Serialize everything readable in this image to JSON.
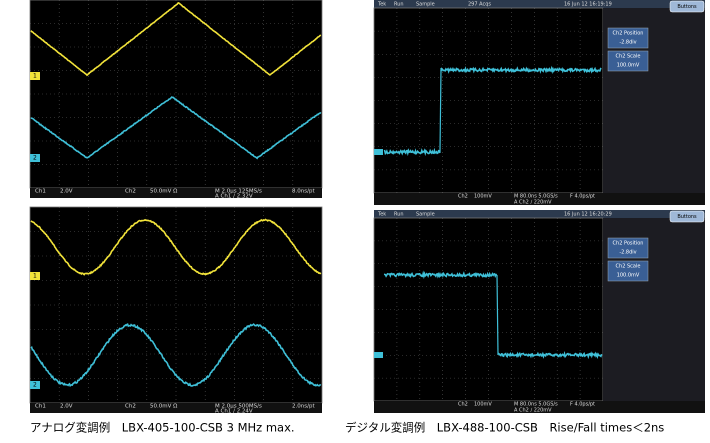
{
  "panels": [
    {
      "markers": [
        "1",
        "2"
      ],
      "status": [
        "Ch1",
        "2.0V",
        "Ch2",
        "50.0mV Ω",
        "M 2.0μs 125MS/s",
        "8.0ns/pt",
        "A Ch1 ∕ 2.32V"
      ]
    },
    {
      "markers": [
        "1",
        "2"
      ],
      "status": [
        "Ch1",
        "2.0V",
        "Ch2",
        "50.0mV Ω",
        "M 2.0μs 500MS/s",
        "2.0ns/pt",
        "A Ch1 ∕ 2.24V"
      ]
    },
    {
      "top_bar": [
        "Tek",
        "Run",
        "Sample",
        "297 Acqs",
        "16 Jun 12 16:19:19"
      ],
      "side_menu": [
        "Buttons",
        "Ch2 Position",
        "-2.8div",
        "Ch2 Scale",
        "100.0mV"
      ],
      "status": [
        "Ch2",
        "100mV",
        "M 80.0ns 5.0GS/s",
        "F 4.0ps/pt",
        "A Ch2 ∕ 220mV"
      ]
    },
    {
      "top_bar": [
        "Tek",
        "Run",
        "Sample",
        "16 Jun 12 16:20:29"
      ],
      "side_menu": [
        "Buttons",
        "Ch2 Position",
        "-2.8div",
        "Ch2 Scale",
        "100.0mV"
      ],
      "status": [
        "Ch2",
        "100mV",
        "M 80.0ns 5.0GS/s",
        "F 4.0ps/pt",
        "A Ch2 ∕ 220mV"
      ]
    }
  ],
  "captions": [
    "アナログ変調例　LBX-405-100-CSB 3 MHz max.",
    "デジタル変調例　LBX-488-100-CSB　Rise/Fall times＜2ns"
  ]
}
